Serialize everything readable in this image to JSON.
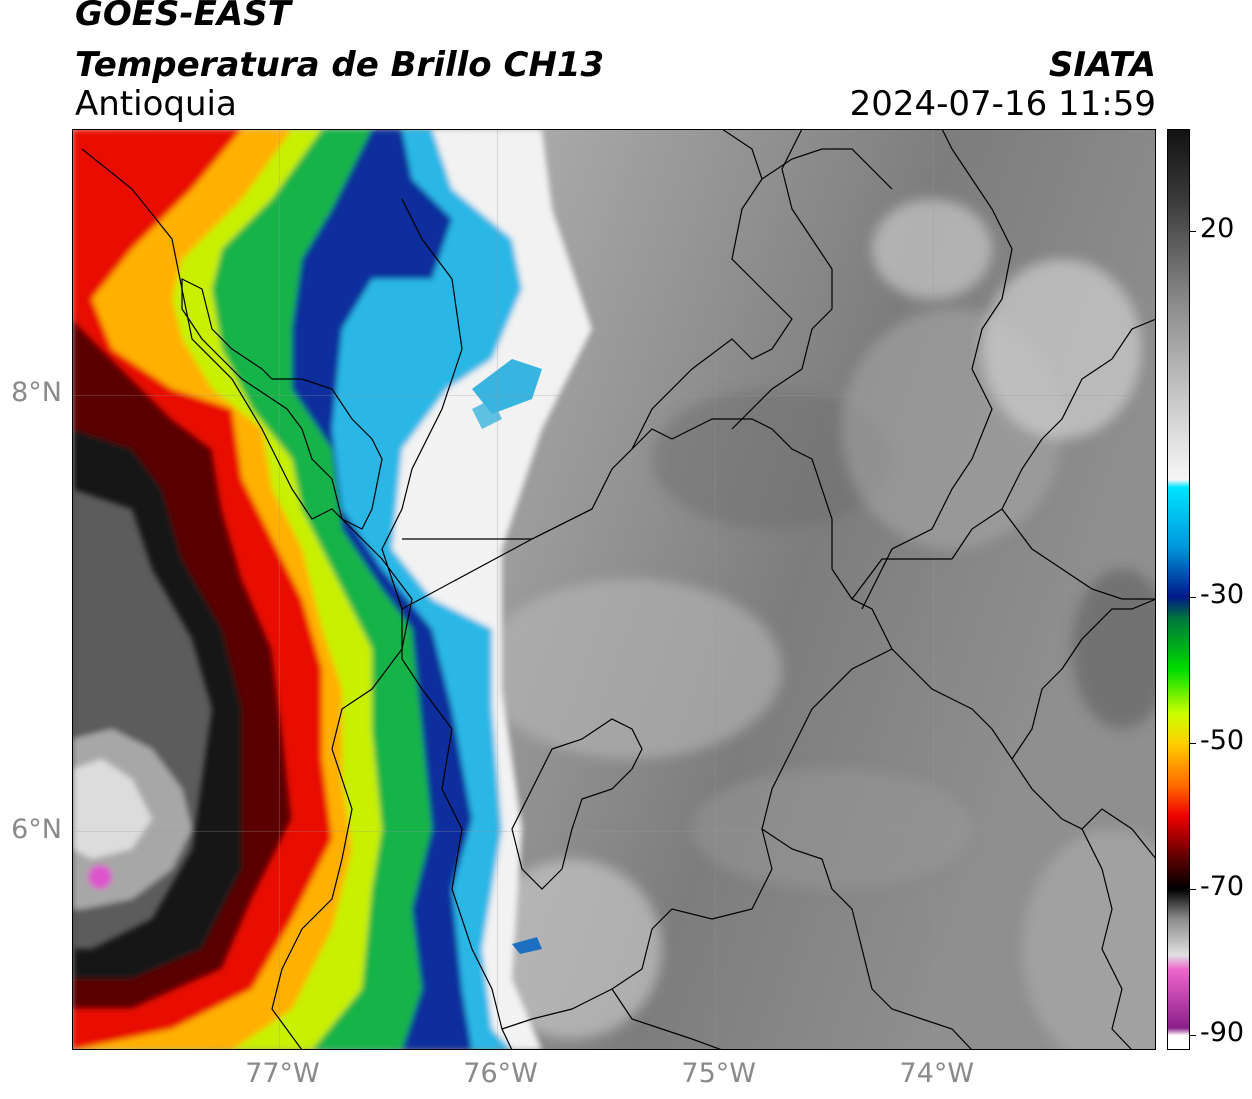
{
  "header": {
    "satellite": "GOES-EAST",
    "product": "Temperatura de Brillo CH13",
    "region": "Antioquia",
    "org": "SIATA",
    "datetime": "2024-07-16 11:59"
  },
  "axes": {
    "lat_ticks": [
      {
        "label": "8°N",
        "lat": 8
      },
      {
        "label": "6°N",
        "lat": 6
      }
    ],
    "lon_ticks": [
      {
        "label": "77°W",
        "lon": -77
      },
      {
        "label": "76°W",
        "lon": -76
      },
      {
        "label": "75°W",
        "lon": -75
      },
      {
        "label": "74°W",
        "lon": -74
      }
    ],
    "lon_range": [
      -77.95,
      -72.98
    ],
    "lat_range": [
      5.0,
      9.22
    ]
  },
  "colorbar": {
    "ticks": [
      {
        "label": "20",
        "value": 20
      },
      {
        "label": "-30",
        "value": -30
      },
      {
        "label": "-50",
        "value": -50
      },
      {
        "label": "-70",
        "value": -70
      },
      {
        "label": "-90",
        "value": -90
      }
    ],
    "range": [
      -92,
      34
    ],
    "stops": [
      {
        "value": 34,
        "color": "#111111"
      },
      {
        "value": 24,
        "color": "#3c3c3c"
      },
      {
        "value": 10,
        "color": "#8c8c8c"
      },
      {
        "value": -6,
        "color": "#d6d6d6"
      },
      {
        "value": -14,
        "color": "#f6f6f6"
      },
      {
        "value": -15,
        "color": "#00e5ff"
      },
      {
        "value": -23,
        "color": "#0099dd"
      },
      {
        "value": -30,
        "color": "#001a88"
      },
      {
        "value": -33,
        "color": "#00763c"
      },
      {
        "value": -40,
        "color": "#00dd00"
      },
      {
        "value": -46,
        "color": "#ccff00"
      },
      {
        "value": -50,
        "color": "#ffd000"
      },
      {
        "value": -56,
        "color": "#ff6600"
      },
      {
        "value": -60,
        "color": "#ee0000"
      },
      {
        "value": -66,
        "color": "#550000"
      },
      {
        "value": -70,
        "color": "#000000"
      },
      {
        "value": -74,
        "color": "#8a8a8a"
      },
      {
        "value": -79,
        "color": "#e0e0e0"
      },
      {
        "value": -81,
        "color": "#ee66cc"
      },
      {
        "value": -89,
        "color": "#8a1f8a"
      },
      {
        "value": -90,
        "color": "#ffffff"
      }
    ]
  }
}
